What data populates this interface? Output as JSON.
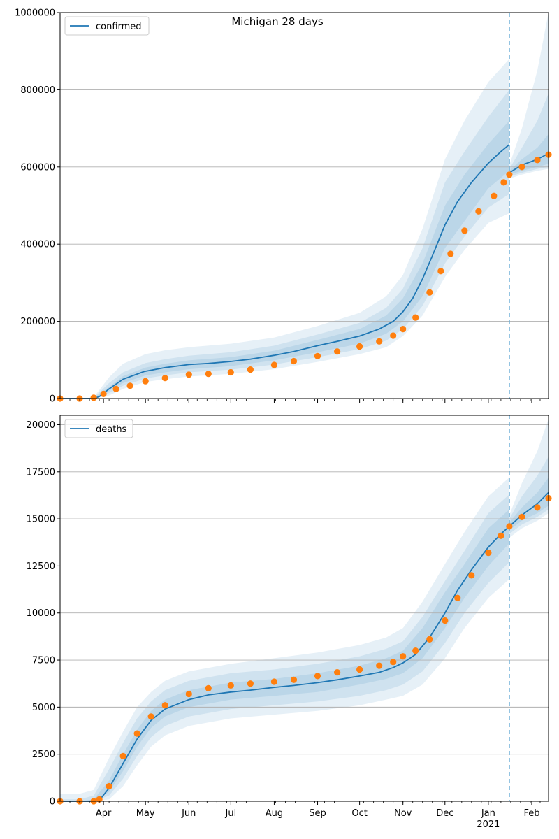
{
  "figure": {
    "title": "Michigan 28 days"
  },
  "x_axis": {
    "month_labels": [
      "Apr",
      "May",
      "Jun",
      "Jul",
      "Aug",
      "Sep",
      "Oct",
      "Nov",
      "Dec",
      "Jan",
      "Feb"
    ],
    "year_label": "2021"
  },
  "chart_data": [
    {
      "type": "line",
      "title": "Michigan 28 days",
      "legend": [
        "confirmed"
      ],
      "legend_position": "top-left",
      "grid": "horizontal",
      "xlim": [
        "2020-03-01",
        "2021-02-13"
      ],
      "ylim": [
        0,
        1000000
      ],
      "ytick_labels": [
        "0",
        "200000",
        "400000",
        "600000",
        "800000",
        "1000000"
      ],
      "forecast_start": "2021-01-16",
      "series": [
        {
          "name": "confirmed",
          "kind": "model",
          "color": "#1f77b4",
          "x": [
            "2020-03-01",
            "2020-03-15",
            "2020-03-25",
            "2020-03-29",
            "2020-04-05",
            "2020-04-15",
            "2020-04-30",
            "2020-05-15",
            "2020-06-01",
            "2020-06-15",
            "2020-07-01",
            "2020-07-15",
            "2020-08-01",
            "2020-08-15",
            "2020-09-01",
            "2020-09-15",
            "2020-10-01",
            "2020-10-15",
            "2020-10-25",
            "2020-11-01",
            "2020-11-08",
            "2020-11-15",
            "2020-11-22",
            "2020-12-01",
            "2020-12-10",
            "2020-12-20",
            "2021-01-01",
            "2021-01-10",
            "2021-01-16"
          ],
          "values": [
            0,
            0,
            0,
            5000,
            25000,
            50000,
            70000,
            80000,
            88000,
            91000,
            96000,
            102000,
            112000,
            122000,
            137000,
            148000,
            162000,
            180000,
            200000,
            225000,
            260000,
            310000,
            370000,
            450000,
            510000,
            560000,
            610000,
            640000,
            658000
          ]
        },
        {
          "name": "confirmed observed",
          "kind": "observed",
          "color": "#ff7f0e",
          "x": [
            "2020-03-01",
            "2020-03-15",
            "2020-03-25",
            "2020-04-01",
            "2020-04-10",
            "2020-04-20",
            "2020-05-01",
            "2020-05-15",
            "2020-06-01",
            "2020-06-15",
            "2020-07-01",
            "2020-07-15",
            "2020-08-01",
            "2020-08-15",
            "2020-09-01",
            "2020-09-15",
            "2020-10-01",
            "2020-10-15",
            "2020-10-25",
            "2020-11-01",
            "2020-11-10",
            "2020-11-20",
            "2020-11-28",
            "2020-12-05",
            "2020-12-15",
            "2020-12-25",
            "2021-01-05",
            "2021-01-12",
            "2021-01-16",
            "2021-01-25",
            "2021-02-05",
            "2021-02-13"
          ],
          "values": [
            0,
            0,
            2000,
            12000,
            25000,
            33000,
            45000,
            53000,
            62000,
            64000,
            68000,
            75000,
            87000,
            97000,
            110000,
            122000,
            135000,
            148000,
            163000,
            180000,
            210000,
            275000,
            330000,
            375000,
            435000,
            485000,
            525000,
            560000,
            580000,
            600000,
            618000,
            632000
          ]
        }
      ],
      "forecast": {
        "x": [
          "2021-01-16",
          "2021-01-25",
          "2021-02-05",
          "2021-02-13"
        ],
        "median": [
          585000,
          605000,
          620000,
          635000
        ],
        "band_inner": [
          [
            580000,
            590000
          ],
          [
            590000,
            620000
          ],
          [
            600000,
            650000
          ],
          [
            608000,
            685000
          ]
        ],
        "band_middle": [
          [
            575000,
            595000
          ],
          [
            585000,
            650000
          ],
          [
            595000,
            720000
          ],
          [
            600000,
            790000
          ]
        ],
        "band_outer": [
          [
            570000,
            605000
          ],
          [
            580000,
            700000
          ],
          [
            590000,
            850000
          ],
          [
            595000,
            1000000
          ]
        ]
      },
      "bands": {
        "x": [
          "2020-03-01",
          "2020-03-15",
          "2020-03-25",
          "2020-04-05",
          "2020-04-15",
          "2020-05-01",
          "2020-05-15",
          "2020-06-01",
          "2020-07-01",
          "2020-08-01",
          "2020-09-01",
          "2020-10-01",
          "2020-10-20",
          "2020-11-01",
          "2020-11-15",
          "2020-12-01",
          "2020-12-15",
          "2021-01-01",
          "2021-01-16"
        ],
        "inner": [
          [
            0,
            0
          ],
          [
            0,
            0
          ],
          [
            0,
            1000
          ],
          [
            20000,
            30000
          ],
          [
            40000,
            58000
          ],
          [
            60000,
            80000
          ],
          [
            68000,
            90000
          ],
          [
            76000,
            99000
          ],
          [
            84000,
            107000
          ],
          [
            99000,
            124000
          ],
          [
            120000,
            152000
          ],
          [
            142000,
            180000
          ],
          [
            168000,
            215000
          ],
          [
            200000,
            260000
          ],
          [
            265000,
            350000
          ],
          [
            390000,
            500000
          ],
          [
            460000,
            580000
          ],
          [
            545000,
            660000
          ],
          [
            590000,
            720000
          ]
        ],
        "middle": [
          [
            0,
            0
          ],
          [
            0,
            0
          ],
          [
            0,
            2000
          ],
          [
            14000,
            40000
          ],
          [
            33000,
            68000
          ],
          [
            52000,
            92000
          ],
          [
            60000,
            102000
          ],
          [
            68000,
            111000
          ],
          [
            75000,
            120000
          ],
          [
            88000,
            137000
          ],
          [
            107000,
            166000
          ],
          [
            128000,
            196000
          ],
          [
            150000,
            235000
          ],
          [
            180000,
            285000
          ],
          [
            240000,
            390000
          ],
          [
            350000,
            560000
          ],
          [
            420000,
            640000
          ],
          [
            495000,
            730000
          ],
          [
            530000,
            800000
          ]
        ],
        "outer": [
          [
            0,
            0
          ],
          [
            0,
            0
          ],
          [
            0,
            3000
          ],
          [
            8000,
            55000
          ],
          [
            25000,
            90000
          ],
          [
            43000,
            115000
          ],
          [
            50000,
            125000
          ],
          [
            57000,
            133000
          ],
          [
            64000,
            142000
          ],
          [
            76000,
            158000
          ],
          [
            95000,
            188000
          ],
          [
            115000,
            222000
          ],
          [
            133000,
            265000
          ],
          [
            162000,
            320000
          ],
          [
            215000,
            440000
          ],
          [
            315000,
            620000
          ],
          [
            385000,
            720000
          ],
          [
            455000,
            820000
          ],
          [
            480000,
            880000
          ]
        ]
      }
    },
    {
      "type": "line",
      "legend": [
        "deaths"
      ],
      "legend_position": "top-left",
      "grid": "horizontal",
      "xlim": [
        "2020-03-01",
        "2021-02-13"
      ],
      "ylim": [
        0,
        20500
      ],
      "ytick_labels": [
        "0",
        "2500",
        "5000",
        "7500",
        "10000",
        "12500",
        "15000",
        "17500",
        "20000"
      ],
      "forecast_start": "2021-01-16",
      "series": [
        {
          "name": "deaths",
          "kind": "model",
          "color": "#1f77b4",
          "x": [
            "2020-03-01",
            "2020-03-15",
            "2020-03-25",
            "2020-03-29",
            "2020-04-05",
            "2020-04-15",
            "2020-04-25",
            "2020-05-05",
            "2020-05-15",
            "2020-06-01",
            "2020-06-15",
            "2020-07-01",
            "2020-07-15",
            "2020-08-01",
            "2020-08-15",
            "2020-09-01",
            "2020-09-15",
            "2020-10-01",
            "2020-10-15",
            "2020-10-25",
            "2020-11-01",
            "2020-11-10",
            "2020-11-20",
            "2020-12-01",
            "2020-12-10",
            "2020-12-20",
            "2021-01-01",
            "2021-01-10",
            "2021-01-16"
          ],
          "values": [
            0,
            0,
            0,
            50,
            700,
            2000,
            3300,
            4300,
            4900,
            5400,
            5650,
            5800,
            5900,
            6050,
            6150,
            6300,
            6450,
            6650,
            6850,
            7100,
            7350,
            7800,
            8700,
            10000,
            11200,
            12300,
            13500,
            14200,
            14600
          ]
        },
        {
          "name": "deaths observed",
          "kind": "observed",
          "color": "#ff7f0e",
          "x": [
            "2020-03-01",
            "2020-03-15",
            "2020-03-25",
            "2020-03-29",
            "2020-04-05",
            "2020-04-15",
            "2020-04-25",
            "2020-05-05",
            "2020-05-15",
            "2020-06-01",
            "2020-06-15",
            "2020-07-01",
            "2020-07-15",
            "2020-08-01",
            "2020-08-15",
            "2020-09-01",
            "2020-09-15",
            "2020-10-01",
            "2020-10-15",
            "2020-10-25",
            "2020-11-01",
            "2020-11-10",
            "2020-11-20",
            "2020-12-01",
            "2020-12-10",
            "2020-12-20",
            "2021-01-01",
            "2021-01-10",
            "2021-01-16",
            "2021-01-25",
            "2021-02-05",
            "2021-02-13"
          ],
          "values": [
            0,
            0,
            0,
            100,
            800,
            2400,
            3600,
            4500,
            5100,
            5700,
            6000,
            6150,
            6250,
            6350,
            6450,
            6650,
            6850,
            7000,
            7200,
            7400,
            7700,
            8000,
            8600,
            9600,
            10800,
            12000,
            13200,
            14100,
            14600,
            15100,
            15600,
            16100
          ]
        }
      ],
      "forecast": {
        "x": [
          "2021-01-16",
          "2021-01-25",
          "2021-02-05",
          "2021-02-13"
        ],
        "median": [
          14600,
          15200,
          15800,
          16400
        ],
        "band_inner": [
          [
            14400,
            14800
          ],
          [
            14900,
            15600
          ],
          [
            15300,
            16400
          ],
          [
            15700,
            17200
          ]
        ],
        "band_middle": [
          [
            14200,
            15000
          ],
          [
            14700,
            16200
          ],
          [
            15100,
            17300
          ],
          [
            15500,
            18300
          ]
        ],
        "band_outer": [
          [
            14000,
            15200
          ],
          [
            14500,
            16900
          ],
          [
            14900,
            18600
          ],
          [
            15300,
            20300
          ]
        ]
      },
      "bands": {
        "x": [
          "2020-03-01",
          "2020-03-15",
          "2020-03-25",
          "2020-04-05",
          "2020-04-15",
          "2020-04-25",
          "2020-05-05",
          "2020-05-15",
          "2020-06-01",
          "2020-07-01",
          "2020-08-01",
          "2020-09-01",
          "2020-10-01",
          "2020-10-20",
          "2020-11-01",
          "2020-11-15",
          "2020-12-01",
          "2020-12-15",
          "2021-01-01",
          "2021-01-16"
        ],
        "inner": [
          [
            0,
            0
          ],
          [
            0,
            0
          ],
          [
            0,
            100
          ],
          [
            500,
            1100
          ],
          [
            1600,
            2500
          ],
          [
            2900,
            3800
          ],
          [
            3900,
            4800
          ],
          [
            4500,
            5400
          ],
          [
            5000,
            5900
          ],
          [
            5400,
            6300
          ],
          [
            5600,
            6500
          ],
          [
            5800,
            6800
          ],
          [
            6200,
            7200
          ],
          [
            6500,
            7600
          ],
          [
            6800,
            8000
          ],
          [
            7600,
            9200
          ],
          [
            9200,
            11100
          ],
          [
            10800,
            12600
          ],
          [
            12500,
            14500
          ],
          [
            13700,
            15500
          ]
        ],
        "middle": [
          [
            0,
            100
          ],
          [
            0,
            100
          ],
          [
            0,
            300
          ],
          [
            300,
            1700
          ],
          [
            1200,
            3100
          ],
          [
            2400,
            4400
          ],
          [
            3400,
            5300
          ],
          [
            4000,
            5900
          ],
          [
            4500,
            6400
          ],
          [
            4900,
            6800
          ],
          [
            5100,
            7000
          ],
          [
            5300,
            7300
          ],
          [
            5600,
            7700
          ],
          [
            5900,
            8100
          ],
          [
            6200,
            8500
          ],
          [
            6900,
            9800
          ],
          [
            8400,
            11700
          ],
          [
            10000,
            13300
          ],
          [
            11600,
            15300
          ],
          [
            12700,
            16300
          ]
        ],
        "outer": [
          [
            0,
            400
          ],
          [
            0,
            400
          ],
          [
            0,
            600
          ],
          [
            100,
            2300
          ],
          [
            800,
            3700
          ],
          [
            1900,
            5000
          ],
          [
            2900,
            5800
          ],
          [
            3500,
            6400
          ],
          [
            4000,
            6900
          ],
          [
            4400,
            7300
          ],
          [
            4600,
            7600
          ],
          [
            4800,
            7900
          ],
          [
            5100,
            8300
          ],
          [
            5400,
            8700
          ],
          [
            5600,
            9200
          ],
          [
            6200,
            10600
          ],
          [
            7600,
            12600
          ],
          [
            9200,
            14300
          ],
          [
            10800,
            16200
          ],
          [
            11800,
            17200
          ]
        ]
      }
    }
  ],
  "colors": {
    "model": "#1f77b4",
    "observed": "#ff7f0e",
    "band": "#1f77b4",
    "grid": "#b0b0b0",
    "forecast_line": "#6baed6"
  }
}
